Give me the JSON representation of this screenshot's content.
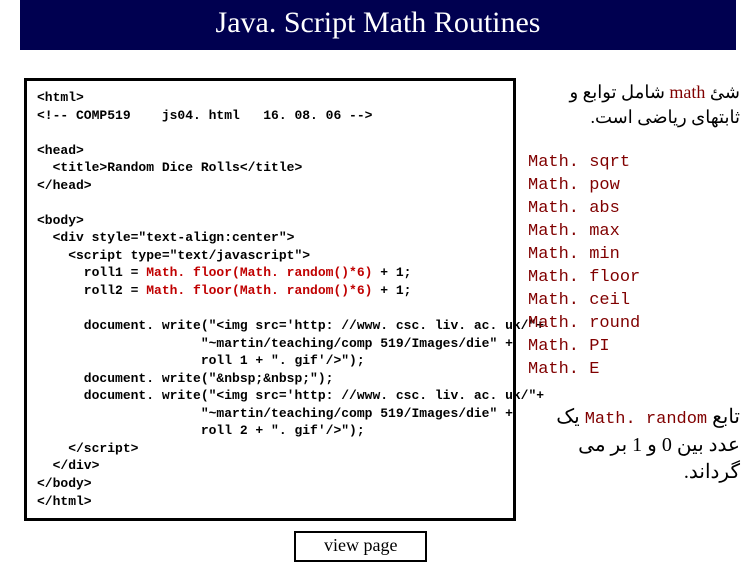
{
  "title": "Java. Script Math Routines",
  "code": {
    "line1": "<html>",
    "line2": "<!-- COMP519    js04. html   16. 08. 06 -->",
    "blank1": "",
    "line3": "<head>",
    "line4": "  <title>Random Dice Rolls</title>",
    "line5": "</head>",
    "blank2": "",
    "line6": "<body>",
    "line7": "  <div style=\"text-align:center\">",
    "line8": "    <script type=\"text/javascript\">",
    "line9a": "      roll1 = ",
    "line9b": "Math. floor(Math. random()*6)",
    "line9c": " + 1;",
    "line10a": "      roll2 = ",
    "line10b": "Math. floor(Math. random()*6)",
    "line10c": " + 1;",
    "blank3": "",
    "line11": "      document. write(\"<img src='http: //www. csc. liv. ac. uk/\"+",
    "line12": "                     \"~martin/teaching/comp 519/Images/die\" +",
    "line13": "                     roll 1 + \". gif'/>\");",
    "line14": "      document. write(\"&nbsp;&nbsp;\");",
    "line15": "      document. write(\"<img src='http: //www. csc. liv. ac. uk/\"+",
    "line16": "                     \"~martin/teaching/comp 519/Images/die\" +",
    "line17": "                     roll 2 + \". gif'/>\");",
    "line18": "    </script>",
    "line19": "  </div>",
    "line20": "</body>",
    "line21": "</html>"
  },
  "rtl1": {
    "part1": "شئ ",
    "math_word": "math",
    "part2": " شامل توابع و ثابتهای ریاضی است."
  },
  "mathList": [
    "Math. sqrt",
    "Math. pow",
    "Math. abs",
    "Math. max",
    "Math. min",
    "Math. floor",
    "Math. ceil",
    "Math. round",
    "Math. PI",
    "Math. E"
  ],
  "rtl2": {
    "part1": "تابع ",
    "random_code": "Math. random",
    "part2": " یک عدد بین 0 و 1 بر می گرداند."
  },
  "viewButton": "view page"
}
